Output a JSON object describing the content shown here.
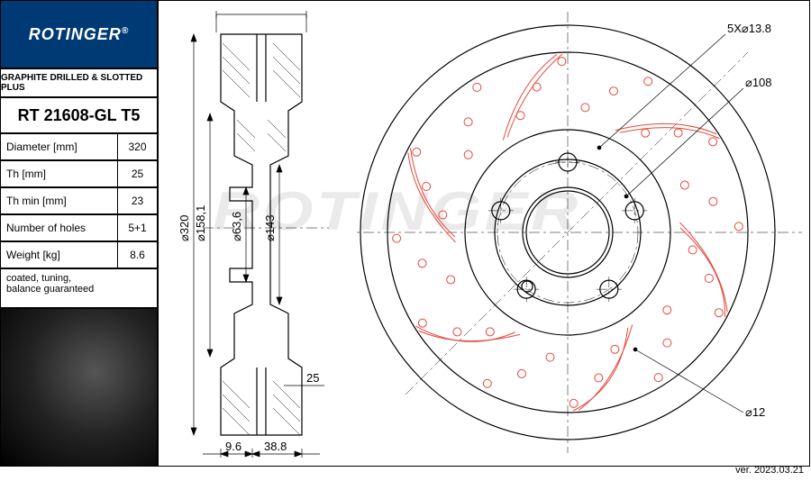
{
  "brand": "ROTINGER",
  "brand_reg": "®",
  "subtitle": "GRAPHITE DRILLED & SLOTTED PLUS",
  "part_number": "RT 21608-GL T5",
  "specs": [
    {
      "label": "Diameter [mm]",
      "value": "320"
    },
    {
      "label": "Th [mm]",
      "value": "25"
    },
    {
      "label": "Th min [mm]",
      "value": "23"
    },
    {
      "label": "Number of holes",
      "value": "5+1"
    },
    {
      "label": "Weight [kg]",
      "value": "8.6"
    }
  ],
  "notes": "coated, tuning,\nbalance guaranteed",
  "version": "ver. 2023.03.21",
  "side_view": {
    "dims": {
      "d320": "⌀320",
      "d158_1": "⌀158,1",
      "d63_6": "⌀63,6",
      "d143": "⌀143",
      "w25": "25",
      "w9_6": "9.6",
      "w38_8": "38.8"
    }
  },
  "front_view": {
    "callouts": {
      "bolt": "5X⌀13.8",
      "pcd": "⌀108",
      "drill": "⌀12"
    },
    "outer_d": 320,
    "hub_d": 158.1,
    "bore_d": 63.6,
    "drill_d": 12,
    "colors": {
      "slot": "#e8463a",
      "line": "#000000",
      "bg": "#ffffff"
    },
    "n_bolts": 5,
    "n_slots": 6,
    "drill_rings": 3
  },
  "watermark": "ROTINGER"
}
